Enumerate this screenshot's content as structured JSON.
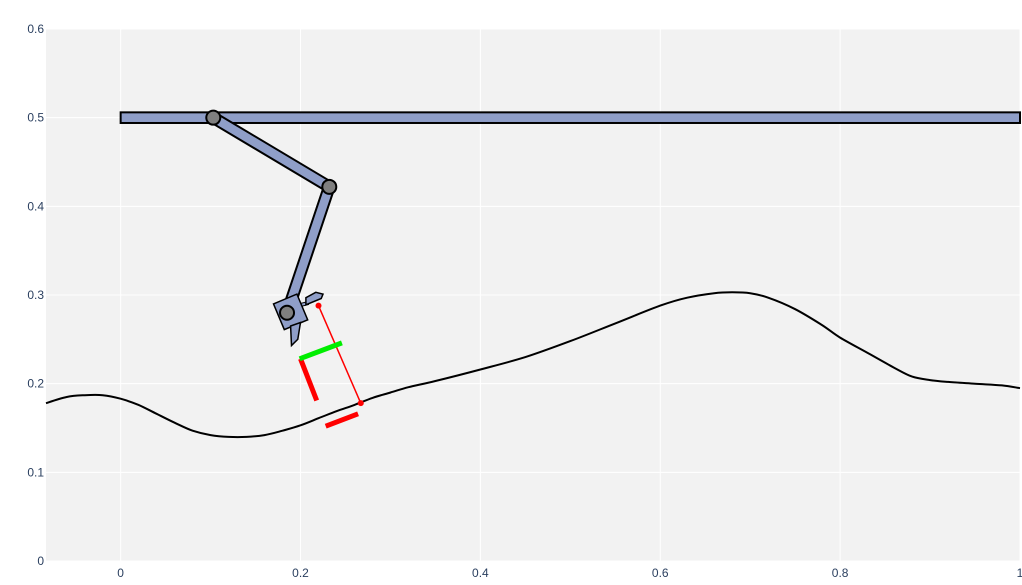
{
  "chart_data": {
    "type": "line",
    "title": "",
    "xlabel": "",
    "ylabel": "",
    "xlim": [
      -0.083,
      1.0
    ],
    "ylim": [
      0,
      0.6
    ],
    "x_ticks": [
      0,
      0.2,
      0.4,
      0.6,
      0.8,
      1
    ],
    "x_tick_labels": [
      "0",
      "0.2",
      "0.4",
      "0.6",
      "0.8",
      "1"
    ],
    "y_ticks": [
      0,
      0.1,
      0.2,
      0.3,
      0.4,
      0.5,
      0.6
    ],
    "y_tick_labels": [
      "0",
      "0.1",
      "0.2",
      "0.3",
      "0.4",
      "0.5",
      "0.6"
    ],
    "grid": true,
    "legend": "none",
    "colors": {
      "plot_background": "#f2f2f2",
      "grid": "#ffffff",
      "link_fill": "#8f9ec8",
      "joint_fill": "#7f7f7f",
      "outline": "#000000",
      "target_line": "#ff0000",
      "green_marker": "#00ee00"
    },
    "surface": {
      "x": [
        -0.083,
        -0.06,
        -0.04,
        -0.02,
        0.0,
        0.02,
        0.04,
        0.06,
        0.08,
        0.1,
        0.12,
        0.14,
        0.16,
        0.18,
        0.2,
        0.22,
        0.24,
        0.26,
        0.28,
        0.3,
        0.32,
        0.35,
        0.4,
        0.45,
        0.5,
        0.55,
        0.6,
        0.63,
        0.66,
        0.68,
        0.7,
        0.72,
        0.75,
        0.78,
        0.8,
        0.83,
        0.86,
        0.88,
        0.9,
        0.92,
        0.95,
        0.98,
        1.0
      ],
      "y": [
        0.178,
        0.185,
        0.187,
        0.187,
        0.183,
        0.176,
        0.166,
        0.156,
        0.147,
        0.142,
        0.14,
        0.14,
        0.142,
        0.147,
        0.153,
        0.161,
        0.169,
        0.176,
        0.184,
        0.19,
        0.196,
        0.203,
        0.216,
        0.23,
        0.248,
        0.268,
        0.288,
        0.297,
        0.302,
        0.303,
        0.302,
        0.297,
        0.284,
        0.266,
        0.252,
        0.235,
        0.218,
        0.208,
        0.204,
        0.202,
        0.2,
        0.198,
        0.195
      ]
    },
    "rail": {
      "x0": 0.0,
      "x1": 1.0,
      "y0": 0.494,
      "y1": 0.506
    },
    "arm": {
      "joints": [
        [
          0.103,
          0.5
        ],
        [
          0.232,
          0.422
        ],
        [
          0.185,
          0.28
        ]
      ],
      "link_width": 0.012
    },
    "tool_head": {
      "body": [
        [
          0.17,
          0.29
        ],
        [
          0.196,
          0.301
        ],
        [
          0.208,
          0.272
        ],
        [
          0.182,
          0.261
        ]
      ],
      "tip": [
        [
          0.189,
          0.265
        ],
        [
          0.2,
          0.269
        ],
        [
          0.197,
          0.25
        ],
        [
          0.19,
          0.243
        ]
      ],
      "arm_pivot": [
        [
          0.206,
          0.289
        ],
        [
          0.223,
          0.296
        ],
        [
          0.225,
          0.301
        ],
        [
          0.217,
          0.303
        ],
        [
          0.206,
          0.297
        ]
      ]
    },
    "target_line": {
      "start": [
        0.22,
        0.288
      ],
      "end": [
        0.267,
        0.178
      ]
    },
    "red_segments": [
      [
        [
          0.2,
          0.228
        ],
        [
          0.218,
          0.181
        ]
      ],
      [
        [
          0.228,
          0.152
        ],
        [
          0.264,
          0.166
        ]
      ]
    ],
    "green_segment": [
      [
        0.199,
        0.228
      ],
      [
        0.246,
        0.246
      ]
    ]
  }
}
